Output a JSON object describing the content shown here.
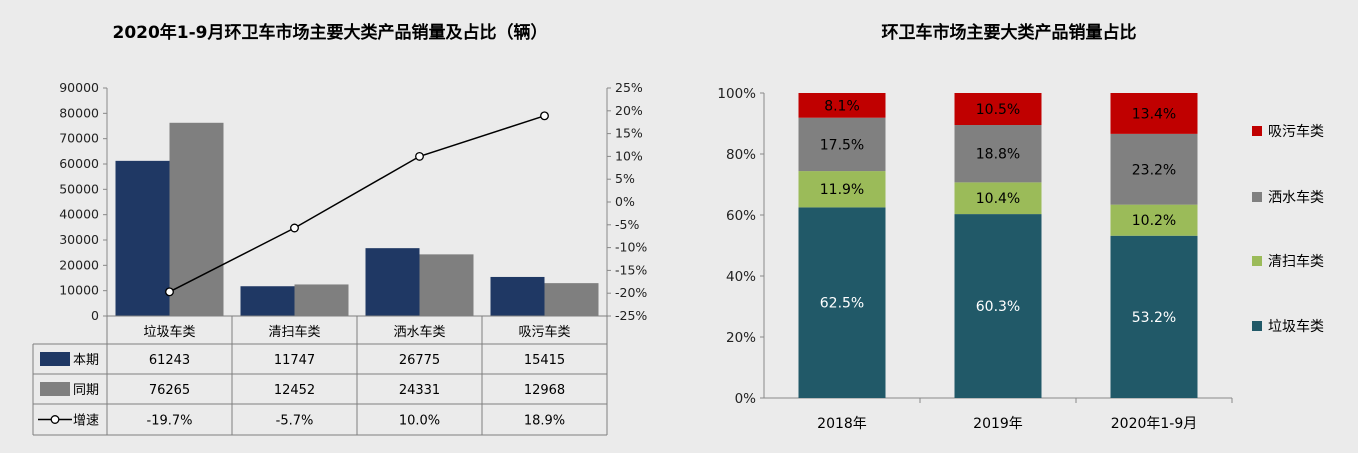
{
  "left_chart": {
    "title": "2020年1-9月环卫车市场主要大类产品销量及占比（辆）",
    "left_ticks": [
      "0",
      "10000",
      "20000",
      "30000",
      "40000",
      "50000",
      "60000",
      "70000",
      "80000",
      "90000"
    ],
    "right_ticks": [
      "-25%",
      "-20%",
      "-15%",
      "-10%",
      "-5%",
      "0%",
      "5%",
      "10%",
      "15%",
      "20%",
      "25%"
    ],
    "table": {
      "rows": [
        {
          "label": "本期",
          "cells": [
            "61243",
            "11747",
            "26775",
            "15415"
          ]
        },
        {
          "label": "同期",
          "cells": [
            "76265",
            "12452",
            "24331",
            "12968"
          ]
        },
        {
          "label": "增速",
          "cells": [
            "-19.7%",
            "-5.7%",
            "10.0%",
            "18.9%"
          ]
        }
      ]
    }
  },
  "right_chart": {
    "title": "环卫车市场主要大类产品销量占比",
    "y_ticks": [
      "0%",
      "20%",
      "40%",
      "60%",
      "80%",
      "100%"
    ]
  },
  "chart_data": [
    {
      "type": "bar",
      "title": "2020年1-9月环卫车市场主要大类产品销量及占比（辆）",
      "categories": [
        "垃圾车类",
        "清扫车类",
        "洒水车类",
        "吸污车类"
      ],
      "series": [
        {
          "name": "本期",
          "type": "bar",
          "axis": "left",
          "color": "#1f3864",
          "values": [
            61243,
            11747,
            26775,
            15415
          ]
        },
        {
          "name": "同期",
          "type": "bar",
          "axis": "left",
          "color": "#7f7f7f",
          "values": [
            76265,
            12452,
            24331,
            12968
          ]
        },
        {
          "name": "增速",
          "type": "line",
          "axis": "right",
          "color": "#000000",
          "values": [
            -19.7,
            -5.7,
            10.0,
            18.9
          ]
        }
      ],
      "ylim": [
        0,
        90000
      ],
      "y2lim": [
        -25,
        25
      ],
      "legend": "data-table"
    },
    {
      "type": "bar",
      "stacked": true,
      "title": "环卫车市场主要大类产品销量占比",
      "categories": [
        "2018年",
        "2019年",
        "2020年1-9月"
      ],
      "series": [
        {
          "name": "垃圾车类",
          "color": "#215968",
          "values": [
            62.5,
            60.3,
            53.2
          ]
        },
        {
          "name": "清扫车类",
          "color": "#9bbb59",
          "values": [
            11.9,
            10.4,
            10.2
          ]
        },
        {
          "name": "洒水车类",
          "color": "#808080",
          "values": [
            17.5,
            18.8,
            23.2
          ]
        },
        {
          "name": "吸污车类",
          "color": "#c00000",
          "values": [
            8.1,
            10.5,
            13.4
          ]
        }
      ],
      "ylim": [
        0,
        100
      ],
      "legend": "right"
    }
  ]
}
